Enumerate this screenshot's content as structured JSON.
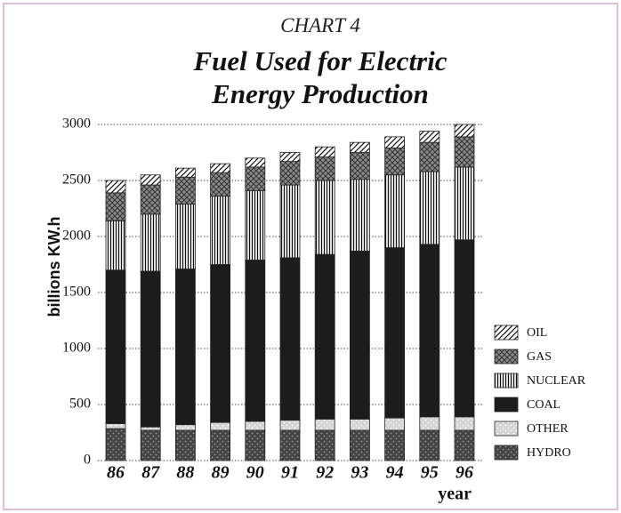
{
  "chart_data": {
    "type": "stacked-bar",
    "supertitle": "CHART 4",
    "title": "Fuel Used for Electric Energy Production",
    "ylabel": "billions KW.h",
    "xlabel": "year",
    "categories": [
      "86",
      "87",
      "88",
      "89",
      "90",
      "91",
      "92",
      "93",
      "94",
      "95",
      "96"
    ],
    "series": [
      {
        "name": "HYDRO",
        "color": "#444444",
        "pattern": "dots",
        "values": [
          285,
          270,
          270,
          270,
          270,
          270,
          270,
          270,
          270,
          270,
          270
        ]
      },
      {
        "name": "OTHER",
        "color": "#d4d4d4",
        "pattern": "dots",
        "values": [
          45,
          30,
          50,
          70,
          80,
          90,
          100,
          100,
          110,
          120,
          120
        ]
      },
      {
        "name": "COAL",
        "color": "#1c1c1c",
        "pattern": "solid",
        "values": [
          1370,
          1390,
          1390,
          1410,
          1440,
          1450,
          1470,
          1500,
          1520,
          1540,
          1580
        ]
      },
      {
        "name": "NUCLEAR",
        "color": "#ffffff",
        "pattern": "vertical",
        "values": [
          440,
          510,
          580,
          610,
          620,
          650,
          660,
          640,
          650,
          650,
          650
        ]
      },
      {
        "name": "GAS",
        "color": "#8a8a8a",
        "pattern": "crosshatch",
        "values": [
          250,
          260,
          240,
          210,
          210,
          210,
          210,
          240,
          240,
          260,
          270
        ]
      },
      {
        "name": "OIL",
        "color": "#ffffff",
        "pattern": "diagonal",
        "values": [
          110,
          90,
          80,
          80,
          80,
          80,
          90,
          90,
          100,
          100,
          110
        ]
      }
    ],
    "ylim": [
      0,
      3000
    ],
    "yticks": [
      0,
      500,
      1000,
      1500,
      2000,
      2500,
      3000
    ],
    "grid": true,
    "legend": "lower right"
  }
}
